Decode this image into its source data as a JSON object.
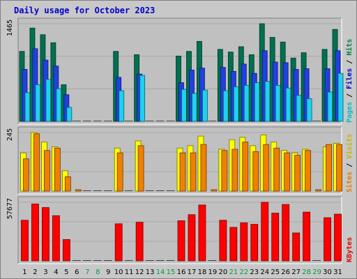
{
  "chart_data": [
    {
      "type": "bar",
      "title": "Daily usage for October 2023",
      "y_max_label": "1465",
      "right_labels": [
        {
          "text": "Pages",
          "color": "#00c0c0"
        },
        {
          "text": " / ",
          "color": "#000000"
        },
        {
          "text": "Files",
          "color": "#0000cc"
        },
        {
          "text": " / ",
          "color": "#000000"
        },
        {
          "text": "Hits",
          "color": "#008040"
        }
      ],
      "categories": [
        "1",
        "2",
        "3",
        "4",
        "5",
        "6",
        "7",
        "8",
        "9",
        "10",
        "11",
        "12",
        "13",
        "14",
        "15",
        "16",
        "17",
        "18",
        "19",
        "20",
        "21",
        "22",
        "23",
        "24",
        "25",
        "26",
        "27",
        "28",
        "29",
        "30",
        "31"
      ],
      "weekend_days": [
        "7",
        "8",
        "14",
        "15",
        "21",
        "22",
        "28",
        "29"
      ],
      "series": [
        {
          "name": "Hits",
          "color": "#007050",
          "values": [
            1050,
            1400,
            1300,
            1180,
            550,
            0,
            0,
            0,
            0,
            1050,
            0,
            1000,
            0,
            0,
            0,
            980,
            1050,
            1200,
            0,
            1080,
            1040,
            1120,
            1000,
            1465,
            1260,
            1190,
            950,
            1030,
            0,
            1080,
            1380
          ]
        },
        {
          "name": "Files",
          "color": "#2040e0",
          "values": [
            780,
            1090,
            920,
            830,
            400,
            0,
            0,
            0,
            0,
            660,
            0,
            710,
            0,
            0,
            0,
            580,
            770,
            800,
            0,
            810,
            750,
            860,
            720,
            1060,
            890,
            880,
            780,
            790,
            0,
            790,
            1060
          ]
        },
        {
          "name": "Pages",
          "color": "#20d0f0",
          "values": [
            430,
            550,
            630,
            490,
            210,
            0,
            0,
            0,
            0,
            460,
            0,
            690,
            0,
            0,
            0,
            480,
            420,
            470,
            0,
            460,
            520,
            540,
            580,
            600,
            540,
            500,
            390,
            340,
            0,
            440,
            720
          ]
        }
      ]
    },
    {
      "type": "bar",
      "y_max_label": "245",
      "right_labels": [
        {
          "text": "Sites",
          "color": "#e08000"
        },
        {
          "text": " / ",
          "color": "#000000"
        },
        {
          "text": "Visits",
          "color": "#c8b400"
        }
      ],
      "categories": [
        "1",
        "2",
        "3",
        "4",
        "5",
        "6",
        "7",
        "8",
        "9",
        "10",
        "11",
        "12",
        "13",
        "14",
        "15",
        "16",
        "17",
        "18",
        "19",
        "20",
        "21",
        "22",
        "23",
        "24",
        "25",
        "26",
        "27",
        "28",
        "29",
        "30",
        "31"
      ],
      "series": [
        {
          "name": "Visits",
          "color": "#ffff00",
          "values": [
            160,
            245,
            205,
            185,
            85,
            0,
            0,
            0,
            0,
            180,
            0,
            210,
            0,
            0,
            0,
            180,
            190,
            230,
            0,
            175,
            215,
            225,
            190,
            235,
            205,
            170,
            160,
            175,
            0,
            185,
            200
          ]
        },
        {
          "name": "Sites",
          "color": "#f08000",
          "values": [
            135,
            240,
            170,
            180,
            60,
            5,
            0,
            0,
            0,
            160,
            0,
            190,
            0,
            0,
            0,
            160,
            160,
            195,
            6,
            170,
            175,
            205,
            165,
            195,
            180,
            160,
            150,
            170,
            5,
            195,
            195
          ]
        }
      ]
    },
    {
      "type": "bar",
      "y_max_label": "57677",
      "right_labels": [
        {
          "text": "KBytes",
          "color": "#e00000"
        }
      ],
      "categories": [
        "1",
        "2",
        "3",
        "4",
        "5",
        "6",
        "7",
        "8",
        "9",
        "10",
        "11",
        "12",
        "13",
        "14",
        "15",
        "16",
        "17",
        "18",
        "19",
        "20",
        "21",
        "22",
        "23",
        "24",
        "25",
        "26",
        "27",
        "28",
        "29",
        "30",
        "31"
      ],
      "series": [
        {
          "name": "KBytes",
          "color": "#ff0000",
          "values": [
            40000,
            56000,
            52500,
            44500,
            21000,
            0,
            0,
            0,
            0,
            36500,
            0,
            38000,
            0,
            0,
            0,
            39500,
            45500,
            55000,
            0,
            40000,
            33000,
            37500,
            36000,
            57677,
            47000,
            55500,
            27500,
            48000,
            0,
            42500,
            46000
          ]
        }
      ]
    }
  ]
}
